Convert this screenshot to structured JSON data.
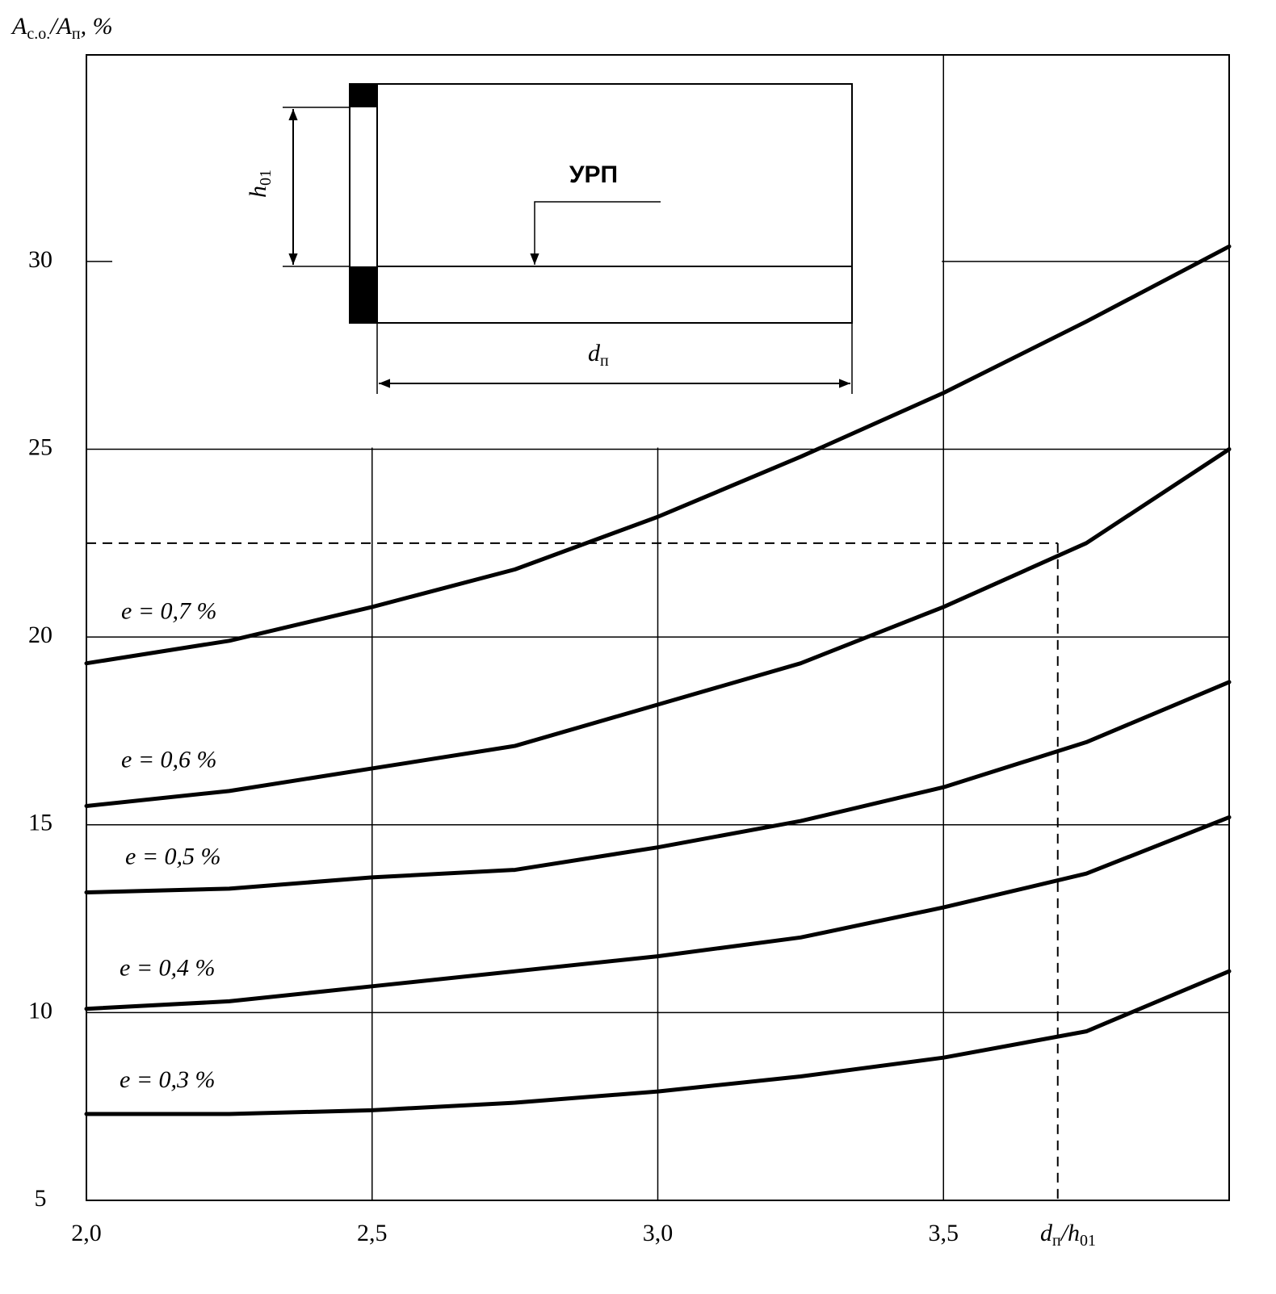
{
  "chart_data": {
    "type": "line",
    "ylabel": [
      {
        "text": "A"
      },
      {
        "text": "с.о.",
        "sub": true
      },
      {
        "text": "/A"
      },
      {
        "text": "п",
        "sub": true
      },
      {
        "text": ",  %"
      }
    ],
    "xlabel": [
      {
        "text": "d"
      },
      {
        "text": "п",
        "sub": true
      },
      {
        "text": "/h"
      },
      {
        "text": "01",
        "sub": true
      }
    ],
    "x": [
      2.0,
      2.25,
      2.5,
      2.75,
      3.0,
      3.25,
      3.5,
      3.75,
      4.0
    ],
    "series": [
      {
        "name": "e = 0,7 %",
        "color": "#000000",
        "values": [
          19.3,
          19.9,
          20.8,
          21.8,
          23.2,
          24.8,
          26.5,
          28.4,
          30.4
        ]
      },
      {
        "name": "e = 0,6 %",
        "color": "#000000",
        "values": [
          15.5,
          15.9,
          16.5,
          17.1,
          18.2,
          19.3,
          20.8,
          22.5,
          25.0
        ]
      },
      {
        "name": "e = 0,5 %",
        "color": "#000000",
        "values": [
          13.2,
          13.3,
          13.6,
          13.8,
          14.4,
          15.1,
          16.0,
          17.2,
          18.8
        ]
      },
      {
        "name": "e = 0,4 %",
        "color": "#000000",
        "values": [
          10.1,
          10.3,
          10.7,
          11.1,
          11.5,
          12.0,
          12.8,
          13.7,
          15.2
        ]
      },
      {
        "name": "e = 0,3 %",
        "color": "#000000",
        "values": [
          7.3,
          7.3,
          7.4,
          7.6,
          7.9,
          8.3,
          8.8,
          9.5,
          11.1
        ]
      }
    ],
    "xlim": [
      2.0,
      4.0
    ],
    "ylim": [
      5,
      35.5
    ],
    "xticks": [
      {
        "value": 2.0,
        "label": "2,0"
      },
      {
        "value": 2.5,
        "label": "2,5"
      },
      {
        "value": 3.0,
        "label": "3,0"
      },
      {
        "value": 3.5,
        "label": "3,5"
      }
    ],
    "yticks": [
      5,
      10,
      15,
      20,
      25,
      30
    ],
    "grid": true,
    "guide": {
      "x": 3.7,
      "y": 22.5
    },
    "inset": {
      "label": "УРП",
      "width_label": [
        {
          "text": "d"
        },
        {
          "text": "п",
          "sub": true
        }
      ],
      "height_label": [
        {
          "text": "h"
        },
        {
          "text": "01",
          "sub": true
        }
      ]
    }
  }
}
